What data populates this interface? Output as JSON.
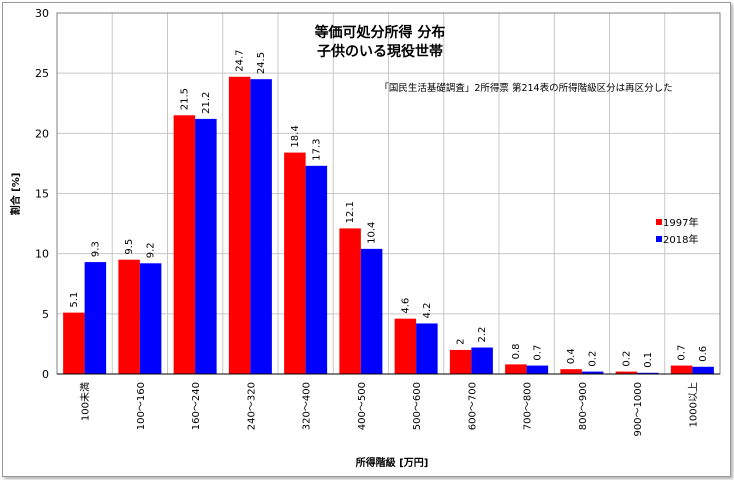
{
  "chart_data": {
    "type": "bar",
    "title": "等価可処分所得 分布",
    "subtitle": "子供のいる現役世帯",
    "note": "「国民生活基礎調査」2所得票 第214表の所得階級区分は再区分した",
    "xlabel": "所得階級 [万円]",
    "ylabel": "割合 [%]",
    "ylim": [
      0,
      30
    ],
    "yticks": [
      0,
      5,
      10,
      15,
      20,
      25,
      30
    ],
    "grid": true,
    "legend_position": "right",
    "categories": [
      "100未満",
      "100～160",
      "160～240",
      "240～320",
      "320～400",
      "400～500",
      "500～600",
      "600～700",
      "700～800",
      "800～900",
      "900～1000",
      "1000以上"
    ],
    "series": [
      {
        "name": "1997年",
        "color": "#ff0000",
        "values": [
          5.1,
          9.5,
          21.5,
          24.7,
          18.4,
          12.1,
          4.6,
          2,
          0.8,
          0.4,
          0.2,
          0.7
        ]
      },
      {
        "name": "2018年",
        "color": "#0000ff",
        "values": [
          9.3,
          9.2,
          21.2,
          24.5,
          17.3,
          10.4,
          4.2,
          2.2,
          0.7,
          0.2,
          0.1,
          0.6
        ]
      }
    ]
  }
}
